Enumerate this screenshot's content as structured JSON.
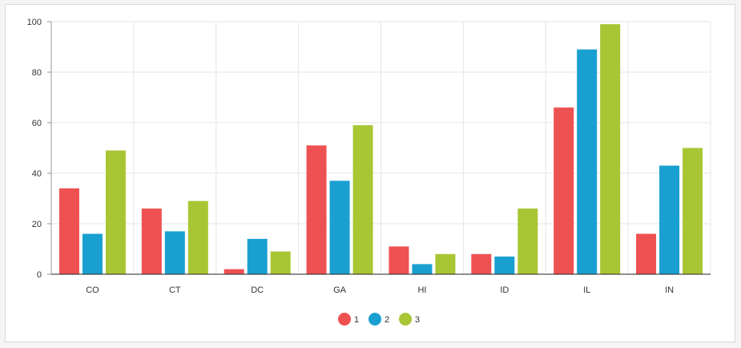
{
  "chart_data": {
    "type": "bar",
    "categories": [
      "CO",
      "CT",
      "DC",
      "GA",
      "HI",
      "ID",
      "IL",
      "IN"
    ],
    "series": [
      {
        "name": "1",
        "color": "#ee5152",
        "values": [
          34,
          26,
          2,
          51,
          11,
          8,
          66,
          16
        ]
      },
      {
        "name": "2",
        "color": "#1aa0d0",
        "values": [
          16,
          17,
          14,
          37,
          4,
          7,
          89,
          43
        ]
      },
      {
        "name": "3",
        "color": "#a8c634",
        "values": [
          49,
          29,
          9,
          59,
          8,
          26,
          99,
          50
        ]
      }
    ],
    "ylim": [
      0,
      100
    ],
    "yticks": [
      0,
      20,
      40,
      60,
      80,
      100
    ],
    "xlabel": "",
    "ylabel": "",
    "grid": true,
    "legend_position": "bottom-center"
  }
}
